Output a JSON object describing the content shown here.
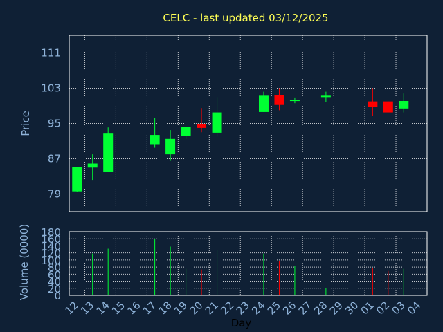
{
  "title": "CELC - last updated 03/12/2025",
  "colors": {
    "background": "#0f2035",
    "title": "#ffff55",
    "axis_text": "#8fb3d9",
    "frame": "#ffffff",
    "grid": "#ffffff",
    "up": "#00ff33",
    "down": "#ff0000"
  },
  "chart_data": [
    {
      "type": "candlestick",
      "title": "CELC - last updated 03/12/2025",
      "ylabel": "Price",
      "ylim": [
        75,
        115
      ],
      "yticks": [
        79,
        87,
        95,
        103,
        111
      ],
      "categories": [
        "12",
        "13",
        "14",
        "15",
        "16",
        "17",
        "18",
        "19",
        "20",
        "21",
        "22",
        "23",
        "24",
        "25",
        "26",
        "27",
        "28",
        "29",
        "30",
        "01",
        "02",
        "03",
        "04"
      ],
      "candles": [
        {
          "x": "12",
          "open": 79.6,
          "close": 85.1,
          "high": 85.1,
          "low": 79.4
        },
        {
          "x": "13",
          "open": 85.0,
          "close": 85.9,
          "high": 88.0,
          "low": 82.2
        },
        {
          "x": "14",
          "open": 84.1,
          "close": 92.7,
          "high": 94.1,
          "low": 84.1
        },
        {
          "x": "17",
          "open": 90.3,
          "close": 92.4,
          "high": 96.2,
          "low": 89.5
        },
        {
          "x": "18",
          "open": 88.0,
          "close": 91.5,
          "high": 93.5,
          "low": 86.5
        },
        {
          "x": "19",
          "open": 92.2,
          "close": 94.2,
          "high": 94.2,
          "low": 91.5
        },
        {
          "x": "20",
          "open": 94.8,
          "close": 94.0,
          "high": 98.5,
          "low": 93.0
        },
        {
          "x": "21",
          "open": 92.9,
          "close": 97.5,
          "high": 101.0,
          "low": 92.0
        },
        {
          "x": "24",
          "open": 97.6,
          "close": 101.3,
          "high": 102.2,
          "low": 97.6
        },
        {
          "x": "25",
          "open": 101.4,
          "close": 99.2,
          "high": 103.0,
          "low": 98.0
        },
        {
          "x": "26",
          "open": 100.1,
          "close": 100.4,
          "high": 100.9,
          "low": 99.6
        },
        {
          "x": "28",
          "open": 101.1,
          "close": 101.3,
          "high": 102.2,
          "low": 99.9
        },
        {
          "x": "01",
          "open": 100.0,
          "close": 98.7,
          "high": 103.0,
          "low": 96.8
        },
        {
          "x": "02",
          "open": 100.0,
          "close": 97.5,
          "high": 100.0,
          "low": 97.5
        },
        {
          "x": "03",
          "open": 98.4,
          "close": 100.1,
          "high": 101.8,
          "low": 97.5
        }
      ]
    },
    {
      "type": "bar",
      "ylabel": "Volume (0000)",
      "xlabel": "Day",
      "ylim": [
        0,
        180
      ],
      "yticks": [
        0,
        20,
        40,
        60,
        80,
        100,
        120,
        140,
        160,
        180
      ],
      "categories": [
        "12",
        "13",
        "14",
        "15",
        "16",
        "17",
        "18",
        "19",
        "20",
        "21",
        "22",
        "23",
        "24",
        "25",
        "26",
        "27",
        "28",
        "29",
        "30",
        "01",
        "02",
        "03",
        "04"
      ],
      "volumes": [
        {
          "x": "13",
          "value": 118,
          "direction": "up"
        },
        {
          "x": "14",
          "value": 132,
          "direction": "up"
        },
        {
          "x": "17",
          "value": 160,
          "direction": "up"
        },
        {
          "x": "18",
          "value": 138,
          "direction": "up"
        },
        {
          "x": "19",
          "value": 75,
          "direction": "up"
        },
        {
          "x": "20",
          "value": 73,
          "direction": "down"
        },
        {
          "x": "21",
          "value": 128,
          "direction": "up"
        },
        {
          "x": "24",
          "value": 118,
          "direction": "up"
        },
        {
          "x": "25",
          "value": 96,
          "direction": "down"
        },
        {
          "x": "26",
          "value": 83,
          "direction": "up"
        },
        {
          "x": "28",
          "value": 20,
          "direction": "up"
        },
        {
          "x": "01",
          "value": 78,
          "direction": "down"
        },
        {
          "x": "02",
          "value": 69,
          "direction": "down"
        },
        {
          "x": "03",
          "value": 75,
          "direction": "up"
        }
      ]
    }
  ]
}
